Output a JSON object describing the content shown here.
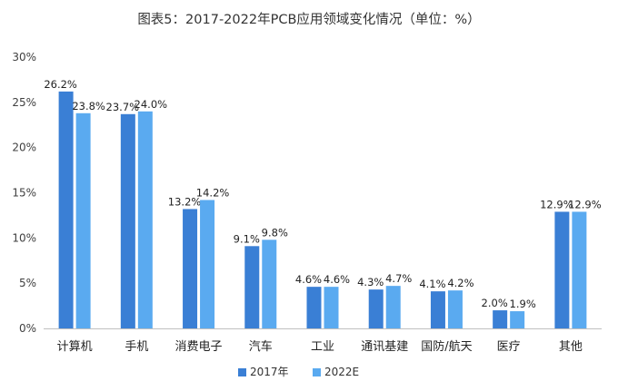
{
  "chart_data": {
    "type": "bar",
    "title": "图表5：2017-2022年PCB应用领域变化情况（单位：%）",
    "categories": [
      "计算机",
      "手机",
      "消费电子",
      "汽车",
      "工业",
      "通讯基建",
      "国防/航天",
      "医疗",
      "其他"
    ],
    "series": [
      {
        "name": "2017年",
        "color": "#3a7fd5",
        "values": [
          26.2,
          23.7,
          13.2,
          9.1,
          4.6,
          4.3,
          4.1,
          2.0,
          12.9
        ]
      },
      {
        "name": "2022E",
        "color": "#5aaaf0",
        "values": [
          23.8,
          24.0,
          14.2,
          9.8,
          4.6,
          4.7,
          4.2,
          1.9,
          12.9
        ]
      }
    ],
    "value_labels": [
      [
        "26.2%",
        "23.7%",
        "13.2%",
        "9.1%",
        "4.6%",
        "4.3%",
        "4.1%",
        "2.0%",
        "12.9%"
      ],
      [
        "23.8%",
        "24.0%",
        "14.2%",
        "9.8%",
        "4.6%",
        "4.7%",
        "4.2%",
        "1.9%",
        "12.9%"
      ]
    ],
    "ylim": [
      0,
      30
    ],
    "yticks": [
      0,
      5,
      10,
      15,
      20,
      25,
      30
    ],
    "ytick_labels": [
      "0%",
      "5%",
      "10%",
      "15%",
      "20%",
      "25%",
      "30%"
    ],
    "legend_position": "bottom",
    "grid": false
  }
}
